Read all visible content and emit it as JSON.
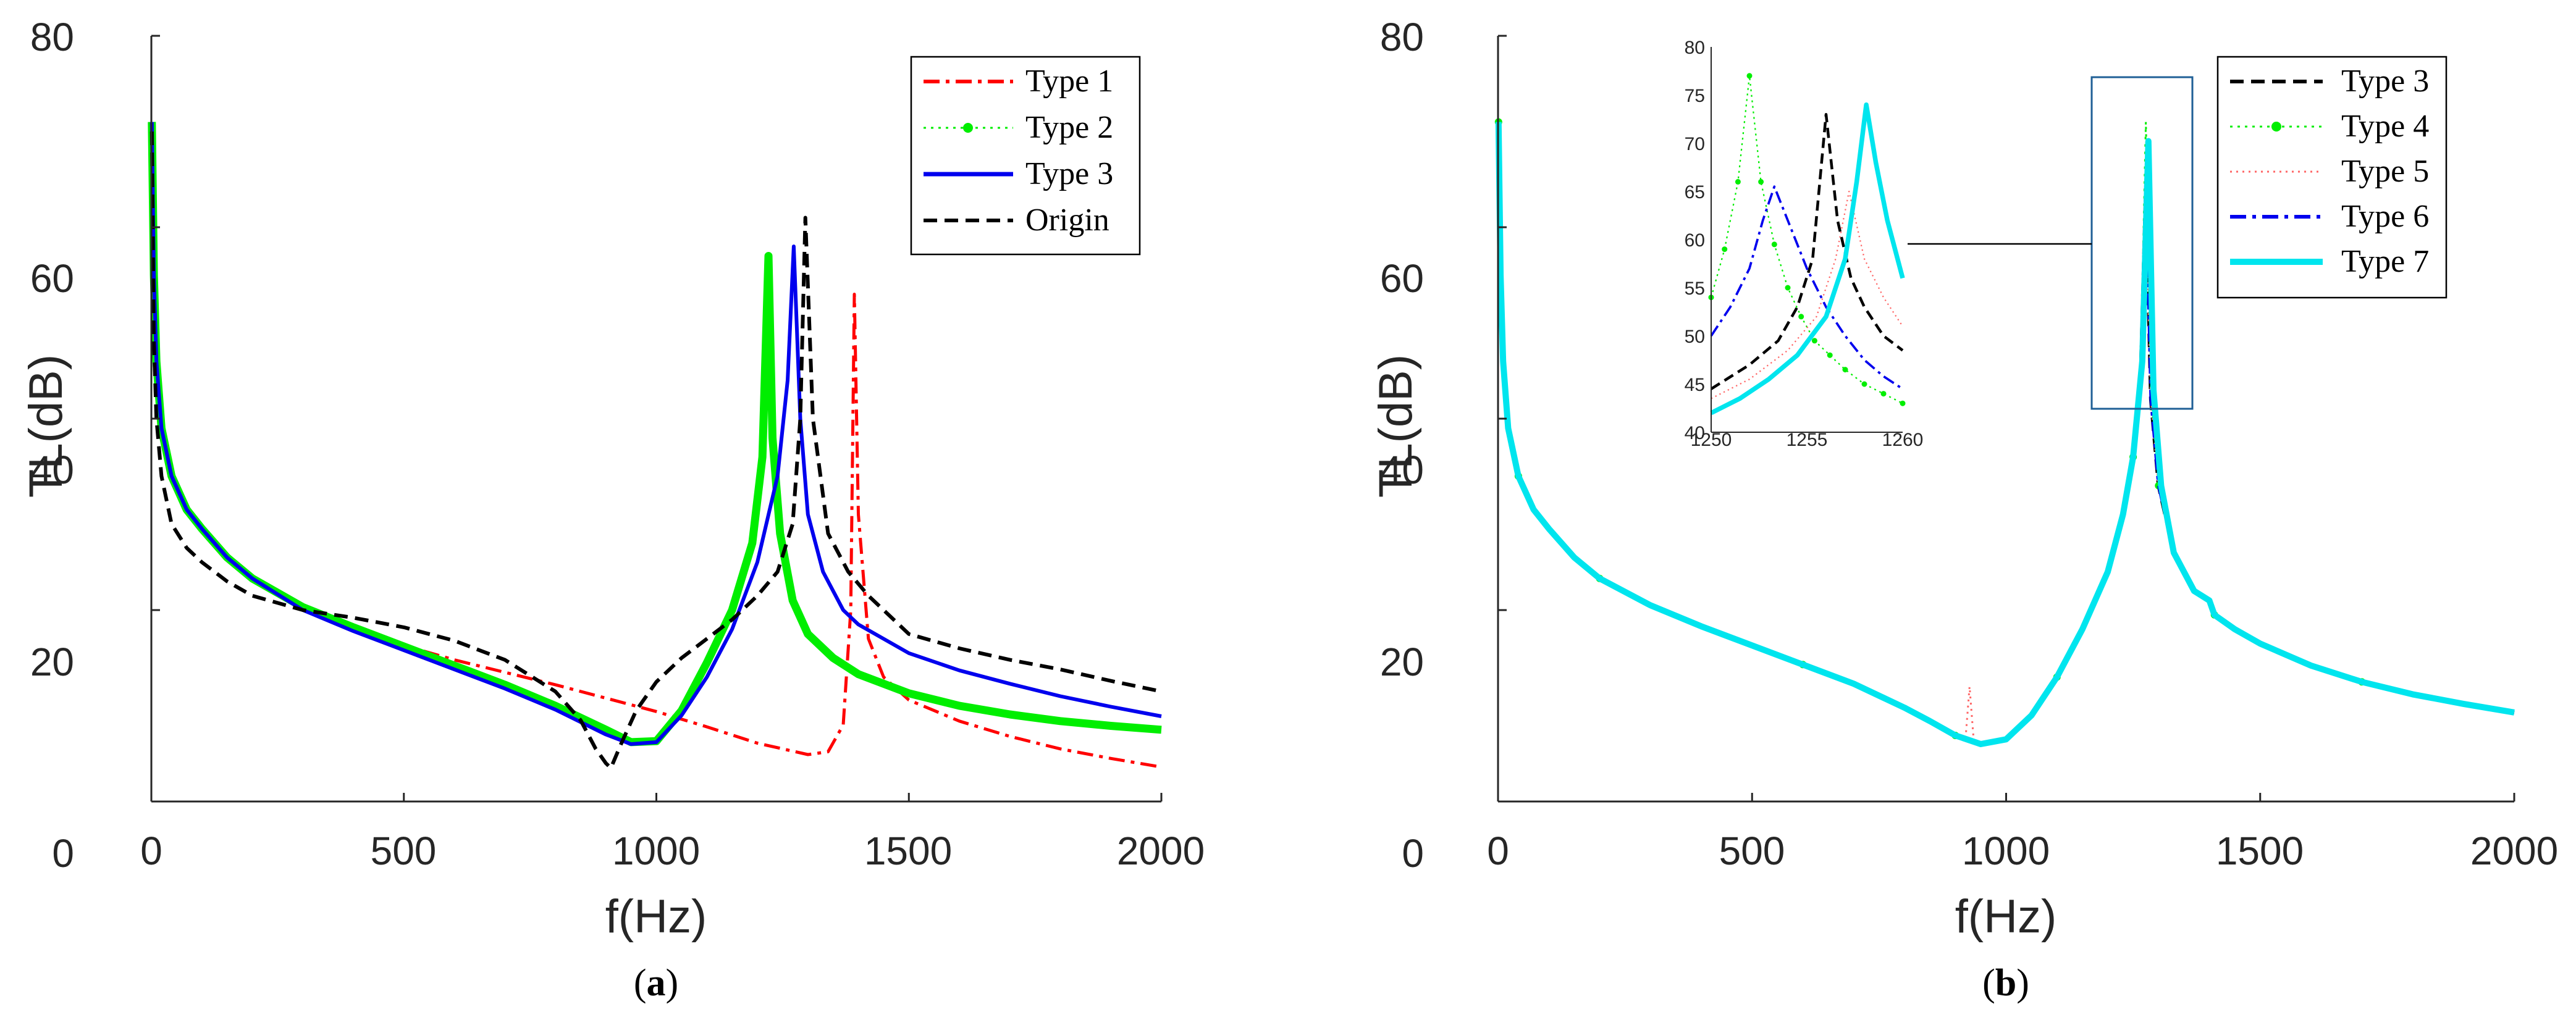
{
  "chart_data": [
    {
      "id": "a",
      "type": "line",
      "caption_left": "(",
      "caption_letter": "a",
      "caption_right": ")",
      "xlabel": "f(Hz)",
      "ylabel": "TL(dB)",
      "xlim": [
        0,
        2000
      ],
      "ylim": [
        0,
        80
      ],
      "xticks": [
        0,
        500,
        1000,
        1500,
        2000
      ],
      "yticks": [
        0,
        20,
        40,
        60,
        80
      ],
      "legend_position": "top-right",
      "series": [
        {
          "name": "Type 1",
          "color": "#ff0000",
          "style": "dashdot",
          "x": [
            1,
            5,
            10,
            20,
            40,
            70,
            100,
            150,
            200,
            300,
            400,
            500,
            600,
            700,
            800,
            900,
            1000,
            1100,
            1200,
            1300,
            1340,
            1370,
            1385,
            1392,
            1400,
            1420,
            1450,
            1500,
            1600,
            1700,
            1800,
            1900,
            2000
          ],
          "y": [
            71,
            55,
            46,
            39,
            34,
            30.5,
            28.5,
            25.5,
            23.3,
            20.3,
            18.2,
            16.3,
            14.8,
            13.5,
            12.2,
            10.8,
            9.4,
            7.8,
            6.1,
            4.9,
            5.2,
            8,
            20,
            53,
            30,
            17,
            13,
            10.6,
            8.4,
            6.8,
            5.5,
            4.5,
            3.6
          ]
        },
        {
          "name": "Type 2",
          "color": "#00ee00",
          "style": "thick-dotted",
          "x": [
            1,
            5,
            10,
            20,
            40,
            70,
            100,
            150,
            200,
            300,
            400,
            500,
            600,
            700,
            800,
            900,
            950,
            1000,
            1050,
            1100,
            1150,
            1190,
            1210,
            1222,
            1230,
            1245,
            1270,
            1300,
            1350,
            1400,
            1500,
            1600,
            1700,
            1800,
            1900,
            2000
          ],
          "y": [
            71,
            55,
            46,
            39,
            34,
            30.5,
            28.5,
            25.5,
            23.3,
            20.3,
            18.2,
            16.2,
            14.2,
            12.2,
            10,
            7.5,
            6.2,
            6.3,
            9.5,
            14.5,
            20,
            27,
            36,
            57,
            38,
            28,
            21,
            17.5,
            15,
            13.3,
            11.3,
            10,
            9.1,
            8.4,
            7.9,
            7.5
          ]
        },
        {
          "name": "Type 3",
          "color": "#0000ee",
          "style": "solid",
          "x": [
            1,
            5,
            10,
            20,
            40,
            70,
            100,
            150,
            200,
            300,
            400,
            500,
            600,
            700,
            800,
            900,
            950,
            1000,
            1050,
            1100,
            1150,
            1200,
            1240,
            1260,
            1272,
            1285,
            1300,
            1330,
            1370,
            1400,
            1500,
            1600,
            1700,
            1800,
            1900,
            2000
          ],
          "y": [
            71,
            55,
            46,
            39,
            34,
            30.5,
            28.5,
            25.5,
            23.3,
            20,
            17.8,
            15.8,
            13.8,
            11.8,
            9.6,
            7,
            6,
            6.2,
            9,
            13,
            18,
            25,
            34,
            44,
            58,
            40,
            30,
            24,
            20,
            18.5,
            15.5,
            13.7,
            12.3,
            11,
            9.9,
            8.9
          ]
        },
        {
          "name": "Origin",
          "color": "#000000",
          "style": "dashed",
          "x": [
            1,
            5,
            10,
            20,
            40,
            70,
            100,
            150,
            200,
            300,
            400,
            500,
            600,
            700,
            800,
            850,
            880,
            900,
            910,
            930,
            960,
            1000,
            1050,
            1100,
            1150,
            1200,
            1240,
            1270,
            1285,
            1295,
            1310,
            1340,
            1380,
            1420,
            1500,
            1600,
            1700,
            1800,
            1900,
            2000
          ],
          "y": [
            70,
            48,
            40,
            34,
            29,
            26.5,
            25,
            23,
            21.5,
            20,
            19.2,
            18.2,
            16.8,
            14.8,
            11.5,
            8.5,
            5.5,
            4,
            3.5,
            6,
            9.5,
            12.5,
            15,
            17,
            19,
            21.5,
            24,
            29,
            40,
            61,
            40,
            28,
            24,
            21.5,
            17.5,
            16,
            14.8,
            13.8,
            12.6,
            11.5
          ]
        }
      ]
    },
    {
      "id": "b",
      "type": "line",
      "caption_left": "(",
      "caption_letter": "b",
      "caption_right": ")",
      "xlabel": "f(Hz)",
      "ylabel": "TL(dB)",
      "xlim": [
        0,
        2000
      ],
      "ylim": [
        0,
        80
      ],
      "xticks": [
        0,
        500,
        1000,
        1500,
        2000
      ],
      "yticks": [
        0,
        20,
        40,
        60,
        80
      ],
      "legend_position": "top-right",
      "zoom_box": {
        "x_range": [
          1170,
          1370
        ],
        "y_range": [
          41,
          75
        ]
      },
      "series": [
        {
          "name": "Type 3",
          "color": "#000000",
          "style": "dashed",
          "x": [
            1,
            5,
            10,
            20,
            40,
            70,
            100,
            150,
            200,
            300,
            400,
            500,
            600,
            700,
            800,
            850,
            900,
            950,
            1000,
            1050,
            1100,
            1150,
            1200,
            1230,
            1250,
            1265,
            1275,
            1285,
            1300,
            1330,
            1370,
            1400,
            1410,
            1450,
            1500,
            1600,
            1700,
            1800,
            1900,
            2000
          ],
          "y": [
            71,
            55,
            46,
            39,
            34,
            30.5,
            28.5,
            25.5,
            23.3,
            20.5,
            18.3,
            16.3,
            14.3,
            12.3,
            9.8,
            8.4,
            6.9,
            6,
            6.5,
            9,
            13,
            18,
            24,
            30,
            36,
            45,
            64,
            42,
            33,
            26,
            22,
            21,
            19.5,
            18,
            16.5,
            14.2,
            12.5,
            11.2,
            10.2,
            9.3
          ]
        },
        {
          "name": "Type 4",
          "color": "#00ee00",
          "style": "dotted-markers",
          "x": [
            1,
            5,
            10,
            20,
            40,
            70,
            100,
            150,
            200,
            300,
            400,
            500,
            600,
            700,
            800,
            850,
            900,
            950,
            1000,
            1050,
            1100,
            1150,
            1200,
            1230,
            1250,
            1265,
            1275,
            1285,
            1300,
            1330,
            1370,
            1400,
            1410,
            1450,
            1500,
            1600,
            1700,
            1800,
            1900,
            2000
          ],
          "y": [
            71,
            55,
            46,
            39,
            34,
            30.5,
            28.5,
            25.5,
            23.3,
            20.5,
            18.3,
            16.3,
            14.3,
            12.3,
            9.8,
            8.4,
            6.9,
            6,
            6.5,
            9,
            13,
            18,
            24,
            30,
            36,
            46,
            71,
            43,
            33,
            26,
            22,
            21,
            19.5,
            18,
            16.5,
            14.2,
            12.5,
            11.2,
            10.2,
            9.3
          ]
        },
        {
          "name": "Type 5",
          "color": "#ff6666",
          "style": "dotted",
          "x": [
            1,
            5,
            10,
            20,
            40,
            70,
            100,
            150,
            200,
            300,
            400,
            500,
            600,
            700,
            800,
            850,
            900,
            920,
            928,
            936,
            950,
            1000,
            1050,
            1100,
            1150,
            1200,
            1230,
            1250,
            1265,
            1275,
            1285,
            1300,
            1330,
            1370,
            1400,
            1410,
            1450,
            1500,
            1600,
            1700,
            1800,
            1900,
            2000
          ],
          "y": [
            71,
            55,
            46,
            39,
            34,
            30.5,
            28.5,
            25.5,
            23.3,
            20.5,
            18.3,
            16.3,
            14.3,
            12.3,
            9.8,
            8.4,
            6.9,
            6.5,
            12,
            6.5,
            6,
            6.5,
            9,
            13,
            18,
            24,
            30,
            36,
            45,
            62,
            42,
            33,
            26,
            22,
            21,
            19.5,
            18,
            16.5,
            14.2,
            12.5,
            11.2,
            10.2,
            9.3
          ]
        },
        {
          "name": "Type 6",
          "color": "#0000ee",
          "style": "dashdot",
          "x": [
            1,
            5,
            10,
            20,
            40,
            70,
            100,
            150,
            200,
            300,
            400,
            500,
            600,
            700,
            800,
            850,
            900,
            950,
            1000,
            1050,
            1100,
            1150,
            1200,
            1230,
            1250,
            1265,
            1275,
            1285,
            1300,
            1330,
            1370,
            1400,
            1410,
            1450,
            1500,
            1600,
            1700,
            1800,
            1900,
            2000
          ],
          "y": [
            71,
            55,
            46,
            39,
            34,
            30.5,
            28.5,
            25.5,
            23.3,
            20.5,
            18.3,
            16.3,
            14.3,
            12.3,
            9.8,
            8.4,
            6.9,
            6,
            6.5,
            9,
            13,
            18,
            24,
            30,
            36,
            45,
            65,
            42,
            33,
            26,
            22,
            21,
            19.5,
            18,
            16.5,
            14.2,
            12.5,
            11.2,
            10.2,
            9.3
          ]
        },
        {
          "name": "Type 7",
          "color": "#00e5ee",
          "style": "thick-solid",
          "x": [
            1,
            5,
            10,
            20,
            40,
            70,
            100,
            150,
            200,
            300,
            400,
            500,
            600,
            700,
            800,
            850,
            900,
            950,
            1000,
            1050,
            1100,
            1150,
            1200,
            1230,
            1250,
            1268,
            1280,
            1290,
            1305,
            1330,
            1370,
            1400,
            1410,
            1450,
            1500,
            1600,
            1700,
            1800,
            1900,
            2000
          ],
          "y": [
            71,
            55,
            46,
            39,
            34,
            30.5,
            28.5,
            25.5,
            23.3,
            20.5,
            18.3,
            16.3,
            14.3,
            12.3,
            9.8,
            8.4,
            6.9,
            6,
            6.5,
            9,
            13,
            18,
            24,
            30,
            36,
            46,
            69,
            43,
            33,
            26,
            22,
            21,
            19.5,
            18,
            16.5,
            14.2,
            12.5,
            11.2,
            10.2,
            9.3
          ]
        }
      ],
      "inset": {
        "xlim": [
          1250,
          1260
        ],
        "ylim": [
          40,
          80
        ],
        "xticks": [
          1250,
          1255,
          1260
        ],
        "yticks": [
          40,
          45,
          50,
          55,
          60,
          65,
          70,
          75,
          80
        ],
        "series": [
          {
            "name": "Type 3",
            "color": "#000000",
            "style": "dashed",
            "x": [
              1250,
              1252,
              1253.5,
              1254.5,
              1255.3,
              1256,
              1256.6,
              1257.3,
              1258,
              1259,
              1260
            ],
            "y": [
              44.5,
              47,
              49.5,
              53,
              58,
              73,
              62,
              56,
              53,
              50,
              48.5
            ]
          },
          {
            "name": "Type 4",
            "color": "#00ee00",
            "style": "dotted-markers",
            "x": [
              1250,
              1250.7,
              1251.4,
              1252,
              1252.6,
              1253.3,
              1254,
              1254.7,
              1255.4,
              1256.2,
              1257,
              1258,
              1259,
              1260
            ],
            "y": [
              54,
              59,
              66,
              77,
              66,
              59.5,
              55,
              52,
              49.5,
              48,
              46.5,
              45,
              44,
              43
            ]
          },
          {
            "name": "Type 5",
            "color": "#ff6666",
            "style": "dotted",
            "x": [
              1250,
              1252,
              1254,
              1255.5,
              1256.5,
              1257.2,
              1258,
              1259,
              1260
            ],
            "y": [
              43.5,
              45.5,
              48.5,
              52,
              58,
              65,
              58,
              54,
              51
            ]
          },
          {
            "name": "Type 6",
            "color": "#0000ee",
            "style": "dashdot",
            "x": [
              1250,
              1251,
              1252,
              1252.7,
              1253.3,
              1254,
              1255,
              1256,
              1257,
              1258,
              1259,
              1260
            ],
            "y": [
              50,
              53,
              57,
              62,
              65.5,
              62,
              57,
              53,
              50,
              47.5,
              45.8,
              44.5
            ]
          },
          {
            "name": "Type 7",
            "color": "#00e5ee",
            "style": "thick-solid",
            "x": [
              1250,
              1251.5,
              1253,
              1254.5,
              1256,
              1257,
              1257.6,
              1258.1,
              1258.6,
              1259.2,
              1260
            ],
            "y": [
              42,
              43.5,
              45.5,
              48,
              52,
              58,
              66,
              74,
              68,
              62,
              56
            ]
          }
        ]
      }
    }
  ]
}
